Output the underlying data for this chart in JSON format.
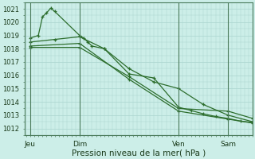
{
  "bg_color": "#cceee8",
  "grid_color": "#aad4ce",
  "line_color": "#2d6e2d",
  "title": "Pression niveau de la mer( hPa )",
  "ylim": [
    1011.5,
    1021.5
  ],
  "yticks": [
    1012,
    1013,
    1014,
    1015,
    1016,
    1017,
    1018,
    1019,
    1020,
    1021
  ],
  "xtick_labels": [
    "Jeu",
    "Dim",
    "Ven",
    "Sam"
  ],
  "xtick_positions": [
    0,
    36,
    108,
    144
  ],
  "vline_positions": [
    0,
    36,
    108,
    144
  ],
  "xlim": [
    -4,
    162
  ],
  "series1_x": [
    0,
    6,
    9,
    12,
    15,
    18,
    36,
    39,
    42,
    45,
    54,
    72,
    90,
    108,
    117,
    126,
    135,
    144,
    153,
    162
  ],
  "series1_y": [
    1018.8,
    1019.0,
    1020.4,
    1020.7,
    1021.05,
    1020.8,
    1019.0,
    1018.8,
    1018.5,
    1018.2,
    1018.0,
    1016.1,
    1015.8,
    1013.6,
    1013.35,
    1013.1,
    1012.9,
    1012.75,
    1012.55,
    1012.45
  ],
  "series2_x": [
    0,
    18,
    36,
    54,
    72,
    90,
    108,
    126,
    144,
    162
  ],
  "series2_y": [
    1018.5,
    1018.7,
    1018.9,
    1018.0,
    1016.5,
    1015.5,
    1015.0,
    1013.8,
    1013.0,
    1012.5
  ],
  "series3_x": [
    0,
    36,
    72,
    108,
    144,
    162
  ],
  "series3_y": [
    1018.2,
    1018.4,
    1015.7,
    1013.3,
    1012.7,
    1012.4
  ],
  "series4_x": [
    0,
    36,
    72,
    108,
    144,
    162
  ],
  "series4_y": [
    1018.1,
    1018.1,
    1015.9,
    1013.5,
    1013.3,
    1012.75
  ]
}
